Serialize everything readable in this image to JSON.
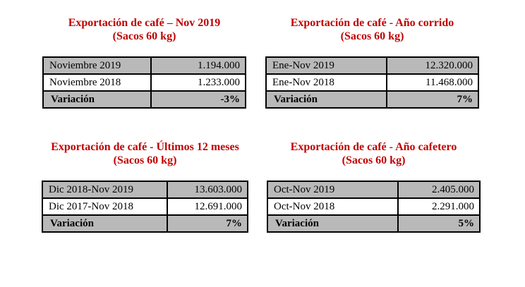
{
  "styles": {
    "title_color": "#C00000",
    "shaded_row_color": "#B9B9B9",
    "border_color": "#000000",
    "page_background": "#FFFFFF"
  },
  "tables": [
    {
      "title": "Exportación de café – Nov 2019",
      "subtitle": "(Sacos 60 kg)",
      "rows": [
        {
          "label": "Noviembre 2019",
          "value": "1.194.000"
        },
        {
          "label": "Noviembre 2018",
          "value": "1.233.000"
        }
      ],
      "variation": {
        "label": "Variación",
        "value": "-3%"
      }
    },
    {
      "title": "Exportación de café - Año corrido",
      "subtitle": "(Sacos 60 kg)",
      "rows": [
        {
          "label": "Ene-Nov 2019",
          "value": "12.320.000"
        },
        {
          "label": "Ene-Nov 2018",
          "value": "11.468.000"
        }
      ],
      "variation": {
        "label": "Variación",
        "value": "7%"
      }
    },
    {
      "title": "Exportación de café - Últimos 12 meses",
      "subtitle": "(Sacos 60 kg)",
      "rows": [
        {
          "label": "Dic 2018-Nov 2019",
          "value": "13.603.000"
        },
        {
          "label": "Dic 2017-Nov 2018",
          "value": "12.691.000"
        }
      ],
      "variation": {
        "label": "Variación",
        "value": "7%"
      }
    },
    {
      "title": "Exportación de café - Año cafetero",
      "subtitle": "(Sacos 60 kg)",
      "rows": [
        {
          "label": "Oct-Nov 2019",
          "value": "2.405.000"
        },
        {
          "label": "Oct-Nov 2018",
          "value": "2.291.000"
        }
      ],
      "variation": {
        "label": "Variación",
        "value": "5%"
      }
    }
  ]
}
